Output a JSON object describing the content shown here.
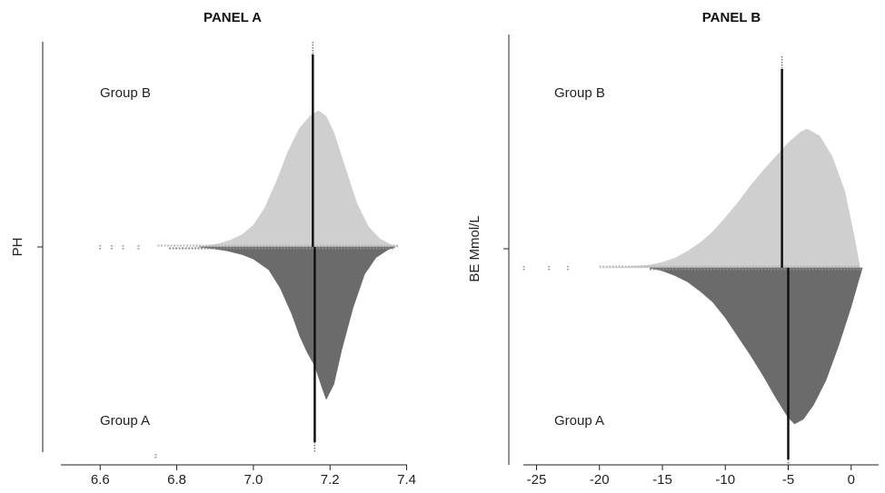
{
  "chart_data": [
    {
      "type": "beanplot",
      "title": "PANEL A",
      "ylabel": "PH",
      "xlabel": "",
      "xlim": [
        6.45,
        7.42
      ],
      "ticks": [
        "6.6",
        "6.8",
        "7.0",
        "7.2",
        "7.4"
      ],
      "grid": false,
      "colors": {
        "upper": "#cfcfcf",
        "lower": "#6b6b6b",
        "median": "#111111"
      },
      "series": [
        {
          "name": "Group B",
          "side": "upper",
          "median": 7.155,
          "density": [
            [
              6.85,
              0.0
            ],
            [
              6.88,
              0.01
            ],
            [
              6.91,
              0.025
            ],
            [
              6.94,
              0.05
            ],
            [
              6.97,
              0.09
            ],
            [
              7.0,
              0.16
            ],
            [
              7.03,
              0.29
            ],
            [
              7.06,
              0.48
            ],
            [
              7.09,
              0.7
            ],
            [
              7.12,
              0.87
            ],
            [
              7.15,
              0.97
            ],
            [
              7.17,
              1.0
            ],
            [
              7.19,
              0.96
            ],
            [
              7.21,
              0.84
            ],
            [
              7.24,
              0.58
            ],
            [
              7.27,
              0.32
            ],
            [
              7.3,
              0.15
            ],
            [
              7.33,
              0.06
            ],
            [
              7.36,
              0.015
            ],
            [
              7.38,
              0.0
            ]
          ],
          "rug_range": [
            6.75,
            7.38
          ],
          "outliers": [
            6.6,
            6.63,
            6.66,
            6.7
          ]
        },
        {
          "name": "Group A",
          "side": "lower",
          "median": 7.16,
          "density": [
            [
              6.86,
              0.0
            ],
            [
              6.89,
              0.01
            ],
            [
              6.93,
              0.025
            ],
            [
              6.97,
              0.05
            ],
            [
              7.0,
              0.08
            ],
            [
              7.04,
              0.15
            ],
            [
              7.07,
              0.27
            ],
            [
              7.1,
              0.44
            ],
            [
              7.12,
              0.58
            ],
            [
              7.14,
              0.69
            ],
            [
              7.16,
              0.78
            ],
            [
              7.18,
              0.93
            ],
            [
              7.19,
              1.0
            ],
            [
              7.21,
              0.9
            ],
            [
              7.23,
              0.68
            ],
            [
              7.26,
              0.4
            ],
            [
              7.29,
              0.18
            ],
            [
              7.32,
              0.07
            ],
            [
              7.35,
              0.02
            ],
            [
              7.37,
              0.0
            ]
          ],
          "rug_range": [
            6.78,
            7.37
          ],
          "outliers": [
            6.745
          ]
        }
      ]
    },
    {
      "type": "beanplot",
      "title": "PANEL B",
      "ylabel": "BE Mmol/L",
      "xlabel": "",
      "xlim": [
        -27.2,
        2.4
      ],
      "ticks": [
        "-25",
        "-20",
        "-15",
        "-10",
        "-5",
        "0"
      ],
      "grid": false,
      "colors": {
        "upper": "#cfcfcf",
        "lower": "#6b6b6b",
        "median": "#111111"
      },
      "series": [
        {
          "name": "Group B",
          "side": "upper",
          "median": -5.5,
          "density": [
            [
              -20,
              0.0
            ],
            [
              -18,
              0.005
            ],
            [
              -16,
              0.02
            ],
            [
              -15,
              0.04
            ],
            [
              -14,
              0.07
            ],
            [
              -13,
              0.12
            ],
            [
              -12,
              0.18
            ],
            [
              -11,
              0.26
            ],
            [
              -10,
              0.36
            ],
            [
              -9,
              0.47
            ],
            [
              -8,
              0.59
            ],
            [
              -7,
              0.7
            ],
            [
              -6,
              0.8
            ],
            [
              -5,
              0.9
            ],
            [
              -4,
              0.98
            ],
            [
              -3.5,
              1.0
            ],
            [
              -2.5,
              0.95
            ],
            [
              -1.5,
              0.8
            ],
            [
              -0.5,
              0.55
            ],
            [
              0.3,
              0.2
            ],
            [
              0.7,
              0.0
            ]
          ],
          "rug_range": [
            -20,
            0.7
          ],
          "outliers": [
            -26,
            -24,
            -22.5
          ]
        },
        {
          "name": "Group A",
          "side": "lower",
          "median": -5.0,
          "density": [
            [
              -16,
              0.0
            ],
            [
              -15,
              0.02
            ],
            [
              -14,
              0.05
            ],
            [
              -13,
              0.09
            ],
            [
              -12,
              0.15
            ],
            [
              -11,
              0.22
            ],
            [
              -10,
              0.32
            ],
            [
              -9,
              0.44
            ],
            [
              -8,
              0.56
            ],
            [
              -7,
              0.69
            ],
            [
              -6,
              0.83
            ],
            [
              -5,
              0.96
            ],
            [
              -4.5,
              1.0
            ],
            [
              -3.8,
              0.97
            ],
            [
              -3,
              0.88
            ],
            [
              -2,
              0.72
            ],
            [
              -1,
              0.5
            ],
            [
              0,
              0.25
            ],
            [
              0.6,
              0.08
            ],
            [
              0.9,
              0.0
            ]
          ],
          "rug_range": [
            -16,
            0.9
          ],
          "outliers": []
        }
      ]
    }
  ]
}
